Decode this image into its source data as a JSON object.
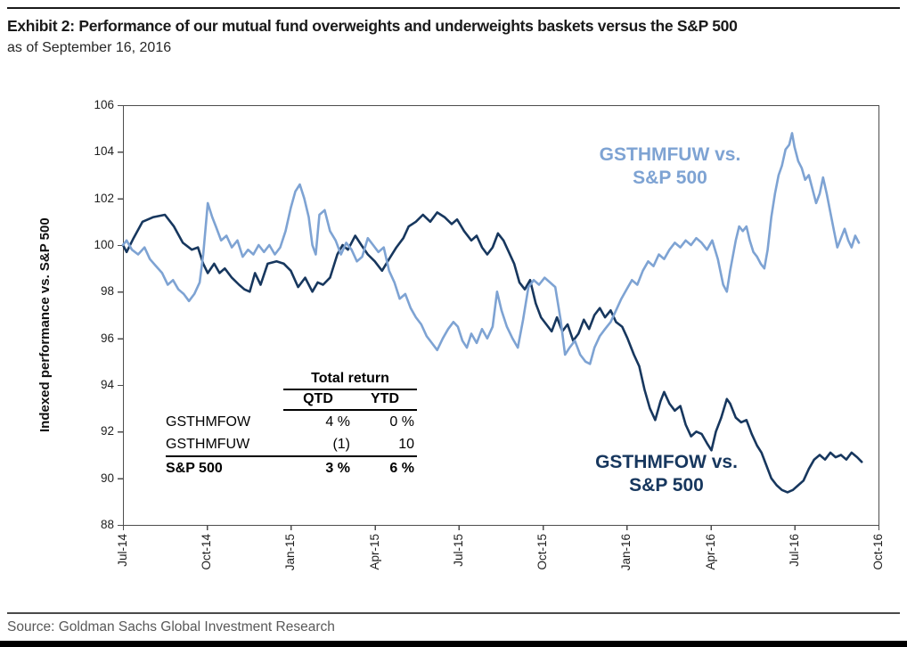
{
  "exhibit": {
    "title": "Exhibit 2: Performance of our mutual fund overweights and underweights baskets versus the S&P 500",
    "subtitle": "as of September 16, 2016"
  },
  "source_text": "Source: Goldman Sachs Global Investment Research",
  "chart_data": {
    "type": "line",
    "title": "",
    "xlabel": "",
    "ylabel": "Indexed performance vs. S&P 500",
    "ylim": [
      88,
      106
    ],
    "ytick_step": 2,
    "xticks": [
      "Jul-14",
      "Oct-14",
      "Jan-15",
      "Apr-15",
      "Jul-15",
      "Oct-15",
      "Jan-16",
      "Apr-16",
      "Jul-16",
      "Oct-16"
    ],
    "x_unit": "months since Jul-2014",
    "x_range": [
      0,
      27
    ],
    "grid": false,
    "axis_color": "#4d4d4d",
    "series": [
      {
        "name": "GSTHMFOW vs. S&P 500",
        "label": "GSTHMFOW vs.\nS&P 500",
        "color": "#17375E",
        "points": [
          [
            0.0,
            100.0
          ],
          [
            0.13,
            99.7
          ],
          [
            0.38,
            100.3
          ],
          [
            0.7,
            101.0
          ],
          [
            1.09,
            101.2
          ],
          [
            1.5,
            101.3
          ],
          [
            1.82,
            100.8
          ],
          [
            2.14,
            100.1
          ],
          [
            2.46,
            99.8
          ],
          [
            2.68,
            99.9
          ],
          [
            2.87,
            99.2
          ],
          [
            3.03,
            98.8
          ],
          [
            3.26,
            99.2
          ],
          [
            3.45,
            98.8
          ],
          [
            3.64,
            99.0
          ],
          [
            3.89,
            98.6
          ],
          [
            4.15,
            98.3
          ],
          [
            4.34,
            98.1
          ],
          [
            4.53,
            98.0
          ],
          [
            4.72,
            98.8
          ],
          [
            4.92,
            98.3
          ],
          [
            5.17,
            99.2
          ],
          [
            5.49,
            99.3
          ],
          [
            5.75,
            99.2
          ],
          [
            6.0,
            98.9
          ],
          [
            6.26,
            98.2
          ],
          [
            6.51,
            98.6
          ],
          [
            6.77,
            98.0
          ],
          [
            6.96,
            98.4
          ],
          [
            7.15,
            98.3
          ],
          [
            7.4,
            98.6
          ],
          [
            7.66,
            99.6
          ],
          [
            7.85,
            100.0
          ],
          [
            8.04,
            99.8
          ],
          [
            8.3,
            100.4
          ],
          [
            8.52,
            100.0
          ],
          [
            8.75,
            99.6
          ],
          [
            9.0,
            99.3
          ],
          [
            9.26,
            98.9
          ],
          [
            9.51,
            99.4
          ],
          [
            9.77,
            99.9
          ],
          [
            10.02,
            100.3
          ],
          [
            10.21,
            100.8
          ],
          [
            10.47,
            101.0
          ],
          [
            10.72,
            101.3
          ],
          [
            10.98,
            101.0
          ],
          [
            11.23,
            101.4
          ],
          [
            11.49,
            101.2
          ],
          [
            11.75,
            100.9
          ],
          [
            11.94,
            101.1
          ],
          [
            12.19,
            100.6
          ],
          [
            12.45,
            100.2
          ],
          [
            12.64,
            100.4
          ],
          [
            12.83,
            99.9
          ],
          [
            13.02,
            99.6
          ],
          [
            13.21,
            99.9
          ],
          [
            13.4,
            100.5
          ],
          [
            13.6,
            100.2
          ],
          [
            13.79,
            99.7
          ],
          [
            13.98,
            99.2
          ],
          [
            14.17,
            98.4
          ],
          [
            14.36,
            98.1
          ],
          [
            14.55,
            98.5
          ],
          [
            14.75,
            97.5
          ],
          [
            14.94,
            96.9
          ],
          [
            15.13,
            96.6
          ],
          [
            15.32,
            96.3
          ],
          [
            15.51,
            96.9
          ],
          [
            15.7,
            96.3
          ],
          [
            15.89,
            96.6
          ],
          [
            16.09,
            95.9
          ],
          [
            16.28,
            96.2
          ],
          [
            16.47,
            96.8
          ],
          [
            16.66,
            96.4
          ],
          [
            16.85,
            97.0
          ],
          [
            17.04,
            97.3
          ],
          [
            17.23,
            96.9
          ],
          [
            17.43,
            97.2
          ],
          [
            17.62,
            96.7
          ],
          [
            17.84,
            96.5
          ],
          [
            18.03,
            96.0
          ],
          [
            18.26,
            95.3
          ],
          [
            18.45,
            94.8
          ],
          [
            18.64,
            93.8
          ],
          [
            18.83,
            93.0
          ],
          [
            19.02,
            92.5
          ],
          [
            19.21,
            93.3
          ],
          [
            19.34,
            93.7
          ],
          [
            19.53,
            93.2
          ],
          [
            19.72,
            92.9
          ],
          [
            19.92,
            93.1
          ],
          [
            20.11,
            92.3
          ],
          [
            20.3,
            91.8
          ],
          [
            20.49,
            92.0
          ],
          [
            20.68,
            91.9
          ],
          [
            20.87,
            91.5
          ],
          [
            21.03,
            91.2
          ],
          [
            21.19,
            92.0
          ],
          [
            21.38,
            92.6
          ],
          [
            21.58,
            93.4
          ],
          [
            21.7,
            93.2
          ],
          [
            21.9,
            92.6
          ],
          [
            22.09,
            92.4
          ],
          [
            22.28,
            92.5
          ],
          [
            22.47,
            91.9
          ],
          [
            22.66,
            91.4
          ],
          [
            22.82,
            91.1
          ],
          [
            22.98,
            90.6
          ],
          [
            23.17,
            90.0
          ],
          [
            23.36,
            89.7
          ],
          [
            23.55,
            89.5
          ],
          [
            23.75,
            89.4
          ],
          [
            23.94,
            89.5
          ],
          [
            24.13,
            89.7
          ],
          [
            24.32,
            89.9
          ],
          [
            24.51,
            90.4
          ],
          [
            24.7,
            90.8
          ],
          [
            24.9,
            91.0
          ],
          [
            25.09,
            90.8
          ],
          [
            25.28,
            91.1
          ],
          [
            25.47,
            90.9
          ],
          [
            25.66,
            91.0
          ],
          [
            25.85,
            90.8
          ],
          [
            26.04,
            91.1
          ],
          [
            26.24,
            90.9
          ],
          [
            26.4,
            90.7
          ]
        ]
      },
      {
        "name": "GSTHMFUW vs. S&P 500",
        "label": "GSTHMFUW vs.\nS&P 500",
        "color": "#7EA3D3",
        "points": [
          [
            0.0,
            100.0
          ],
          [
            0.13,
            100.2
          ],
          [
            0.32,
            99.8
          ],
          [
            0.54,
            99.6
          ],
          [
            0.77,
            99.9
          ],
          [
            0.96,
            99.4
          ],
          [
            1.18,
            99.1
          ],
          [
            1.4,
            98.8
          ],
          [
            1.6,
            98.3
          ],
          [
            1.79,
            98.5
          ],
          [
            1.98,
            98.1
          ],
          [
            2.17,
            97.9
          ],
          [
            2.36,
            97.6
          ],
          [
            2.55,
            97.9
          ],
          [
            2.74,
            98.4
          ],
          [
            2.87,
            99.6
          ],
          [
            3.03,
            101.8
          ],
          [
            3.19,
            101.2
          ],
          [
            3.32,
            100.8
          ],
          [
            3.51,
            100.2
          ],
          [
            3.7,
            100.4
          ],
          [
            3.89,
            99.9
          ],
          [
            4.09,
            100.2
          ],
          [
            4.28,
            99.5
          ],
          [
            4.47,
            99.8
          ],
          [
            4.66,
            99.6
          ],
          [
            4.85,
            100.0
          ],
          [
            5.04,
            99.7
          ],
          [
            5.23,
            100.0
          ],
          [
            5.43,
            99.6
          ],
          [
            5.62,
            99.9
          ],
          [
            5.81,
            100.6
          ],
          [
            6.0,
            101.6
          ],
          [
            6.16,
            102.3
          ],
          [
            6.32,
            102.6
          ],
          [
            6.48,
            102.0
          ],
          [
            6.64,
            101.2
          ],
          [
            6.77,
            100.0
          ],
          [
            6.89,
            99.6
          ],
          [
            7.02,
            101.3
          ],
          [
            7.21,
            101.5
          ],
          [
            7.4,
            100.6
          ],
          [
            7.6,
            100.2
          ],
          [
            7.79,
            99.6
          ],
          [
            7.98,
            100.1
          ],
          [
            8.17,
            99.8
          ],
          [
            8.36,
            99.3
          ],
          [
            8.55,
            99.5
          ],
          [
            8.75,
            100.3
          ],
          [
            8.94,
            100.0
          ],
          [
            9.13,
            99.7
          ],
          [
            9.32,
            99.9
          ],
          [
            9.51,
            98.9
          ],
          [
            9.7,
            98.4
          ],
          [
            9.89,
            97.7
          ],
          [
            10.09,
            97.9
          ],
          [
            10.28,
            97.3
          ],
          [
            10.47,
            96.9
          ],
          [
            10.66,
            96.6
          ],
          [
            10.85,
            96.1
          ],
          [
            11.04,
            95.8
          ],
          [
            11.23,
            95.5
          ],
          [
            11.43,
            96.0
          ],
          [
            11.62,
            96.4
          ],
          [
            11.81,
            96.7
          ],
          [
            11.97,
            96.5
          ],
          [
            12.13,
            95.9
          ],
          [
            12.29,
            95.6
          ],
          [
            12.45,
            96.2
          ],
          [
            12.64,
            95.8
          ],
          [
            12.83,
            96.4
          ],
          [
            13.02,
            96.0
          ],
          [
            13.21,
            96.5
          ],
          [
            13.37,
            98.0
          ],
          [
            13.53,
            97.2
          ],
          [
            13.72,
            96.5
          ],
          [
            13.92,
            96.0
          ],
          [
            14.11,
            95.6
          ],
          [
            14.3,
            96.8
          ],
          [
            14.49,
            98.2
          ],
          [
            14.68,
            98.5
          ],
          [
            14.87,
            98.3
          ],
          [
            15.07,
            98.6
          ],
          [
            15.26,
            98.4
          ],
          [
            15.45,
            98.2
          ],
          [
            15.64,
            96.8
          ],
          [
            15.8,
            95.3
          ],
          [
            15.96,
            95.6
          ],
          [
            16.15,
            95.9
          ],
          [
            16.34,
            95.3
          ],
          [
            16.53,
            95.0
          ],
          [
            16.69,
            94.9
          ],
          [
            16.85,
            95.6
          ],
          [
            17.04,
            96.1
          ],
          [
            17.23,
            96.4
          ],
          [
            17.43,
            96.7
          ],
          [
            17.62,
            97.2
          ],
          [
            17.81,
            97.7
          ],
          [
            18.0,
            98.1
          ],
          [
            18.19,
            98.5
          ],
          [
            18.38,
            98.3
          ],
          [
            18.58,
            98.9
          ],
          [
            18.77,
            99.3
          ],
          [
            18.96,
            99.1
          ],
          [
            19.15,
            99.6
          ],
          [
            19.34,
            99.4
          ],
          [
            19.53,
            99.8
          ],
          [
            19.72,
            100.1
          ],
          [
            19.92,
            99.9
          ],
          [
            20.11,
            100.2
          ],
          [
            20.3,
            100.0
          ],
          [
            20.49,
            100.3
          ],
          [
            20.68,
            100.1
          ],
          [
            20.87,
            99.8
          ],
          [
            21.06,
            100.2
          ],
          [
            21.26,
            99.4
          ],
          [
            21.45,
            98.3
          ],
          [
            21.58,
            98.0
          ],
          [
            21.7,
            98.9
          ],
          [
            21.9,
            100.2
          ],
          [
            22.02,
            100.8
          ],
          [
            22.15,
            100.6
          ],
          [
            22.28,
            100.8
          ],
          [
            22.4,
            100.2
          ],
          [
            22.53,
            99.7
          ],
          [
            22.66,
            99.5
          ],
          [
            22.79,
            99.2
          ],
          [
            22.92,
            99.0
          ],
          [
            23.04,
            99.8
          ],
          [
            23.17,
            101.2
          ],
          [
            23.3,
            102.2
          ],
          [
            23.43,
            103.0
          ],
          [
            23.55,
            103.4
          ],
          [
            23.68,
            104.1
          ],
          [
            23.81,
            104.3
          ],
          [
            23.91,
            104.8
          ],
          [
            24.0,
            104.2
          ],
          [
            24.13,
            103.6
          ],
          [
            24.26,
            103.3
          ],
          [
            24.38,
            102.8
          ],
          [
            24.51,
            103.0
          ],
          [
            24.64,
            102.4
          ],
          [
            24.77,
            101.8
          ],
          [
            24.9,
            102.2
          ],
          [
            25.02,
            102.9
          ],
          [
            25.15,
            102.2
          ],
          [
            25.28,
            101.4
          ],
          [
            25.41,
            100.6
          ],
          [
            25.53,
            99.9
          ],
          [
            25.66,
            100.3
          ],
          [
            25.79,
            100.7
          ],
          [
            25.92,
            100.2
          ],
          [
            26.04,
            99.9
          ],
          [
            26.17,
            100.4
          ],
          [
            26.3,
            100.1
          ]
        ]
      }
    ],
    "table": {
      "title": "Total return",
      "columns": [
        "QTD",
        "YTD"
      ],
      "rows": [
        {
          "name": "GSTHMFOW",
          "QTD": "4 %",
          "YTD": "0 %",
          "bold": false
        },
        {
          "name": "GSTHMFUW",
          "QTD": "(1)",
          "YTD": "10",
          "bold": false
        },
        {
          "name": "S&P 500",
          "QTD": "3 %",
          "YTD": "6 %",
          "bold": true
        }
      ]
    }
  }
}
